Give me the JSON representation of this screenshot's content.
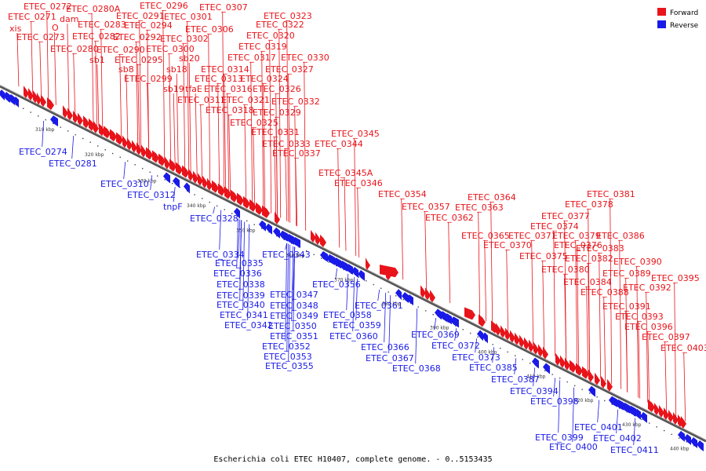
{
  "colors": {
    "forward": "#e8141a",
    "reverse": "#1a1ae8",
    "backbone": "#555555"
  },
  "legend": {
    "forward_label": "Forward",
    "reverse_label": "Reverse"
  },
  "caption": "Escherichia coli ETEC H10407, complete genome. - 0..5153435",
  "ticks": [
    "310 kbp",
    "320 kbp",
    "330 kbp",
    "340 kbp",
    "350 kbp",
    "360 kbp",
    "370 kbp",
    "380 kbp",
    "390 kbp",
    "400 kbp",
    "410 kbp",
    "420 kbp",
    "430 kbp",
    "440 kbp"
  ],
  "forward_labels": [
    "ETEC_0272",
    "xis",
    "ETEC_0271",
    "ETEC_0273",
    "ETEC_0280A",
    "dam",
    "O",
    "ETEC_0283",
    "ETEC_0282",
    "ETEC_0280",
    "sb1",
    "ETEC_0296",
    "ETEC_0291",
    "ETEC_0294",
    "ETEC_0292",
    "ETEC_0290",
    "ETEC_0295",
    "sb8",
    "ETEC_0299",
    "ETEC_0307",
    "ETEC_0301",
    "ETEC_0306",
    "ETEC_0302",
    "ETEC_0300",
    "sb20",
    "sb18",
    "sb19",
    "tfaE",
    "ETEC_0311",
    "ETEC_0313",
    "ETEC_0314",
    "ETEC_0316",
    "ETEC_0318",
    "ETEC_0317",
    "ETEC_0319",
    "ETEC_0320",
    "ETEC_0322",
    "ETEC_0323",
    "ETEC_0321",
    "ETEC_0324",
    "ETEC_0326",
    "ETEC_0327",
    "ETEC_0330",
    "ETEC_0332",
    "ETEC_0329",
    "ETEC_0325",
    "ETEC_0331",
    "ETEC_0333",
    "ETEC_0337",
    "ETEC_0345",
    "ETEC_0344",
    "ETEC_0345A",
    "ETEC_0346",
    "ETEC_0354",
    "ETEC_0357",
    "ETEC_0362",
    "ETEC_0363",
    "ETEC_0364",
    "ETEC_0365",
    "ETEC_0370",
    "ETEC_0371",
    "ETEC_0374",
    "ETEC_0377",
    "ETEC_0378",
    "ETEC_0381",
    "ETEC_0376",
    "ETEC_0379",
    "ETEC_0386",
    "ETEC_0375",
    "ETEC_0383",
    "ETEC_0382",
    "ETEC_0380",
    "ETEC_0384",
    "ETEC_0390",
    "ETEC_0389",
    "ETEC_0388",
    "ETEC_0395",
    "ETEC_0392",
    "ETEC_0391",
    "ETEC_0393",
    "ETEC_0396",
    "ETEC_0397",
    "ETEC_0403"
  ],
  "reverse_labels": [
    "ETEC_0274",
    "ETEC_0281",
    "ETEC_0310",
    "ETEC_0312",
    "tnpF",
    "ETEC_0328",
    "ETEC_0334",
    "ETEC_0335",
    "ETEC_0343",
    "ETEC_0336",
    "ETEC_0338",
    "ETEC_0339",
    "ETEC_0340",
    "ETEC_0341",
    "ETEC_0342",
    "ETEC_0347",
    "ETEC_0356",
    "ETEC_0348",
    "ETEC_0349",
    "ETEC_0358",
    "ETEC_0350",
    "ETEC_0359",
    "ETEC_0351",
    "ETEC_0360",
    "ETEC_0352",
    "ETEC_0353",
    "ETEC_0355",
    "ETEC_0361",
    "ETEC_0366",
    "ETEC_0369",
    "ETEC_0367",
    "ETEC_0368",
    "ETEC_0372",
    "ETEC_0373",
    "ETEC_0385",
    "ETEC_0387",
    "ETEC_0394",
    "ETEC_0398",
    "ETEC_0401",
    "ETEC_0399",
    "ETEC_0402",
    "ETEC_0400",
    "ETEC_0411"
  ]
}
